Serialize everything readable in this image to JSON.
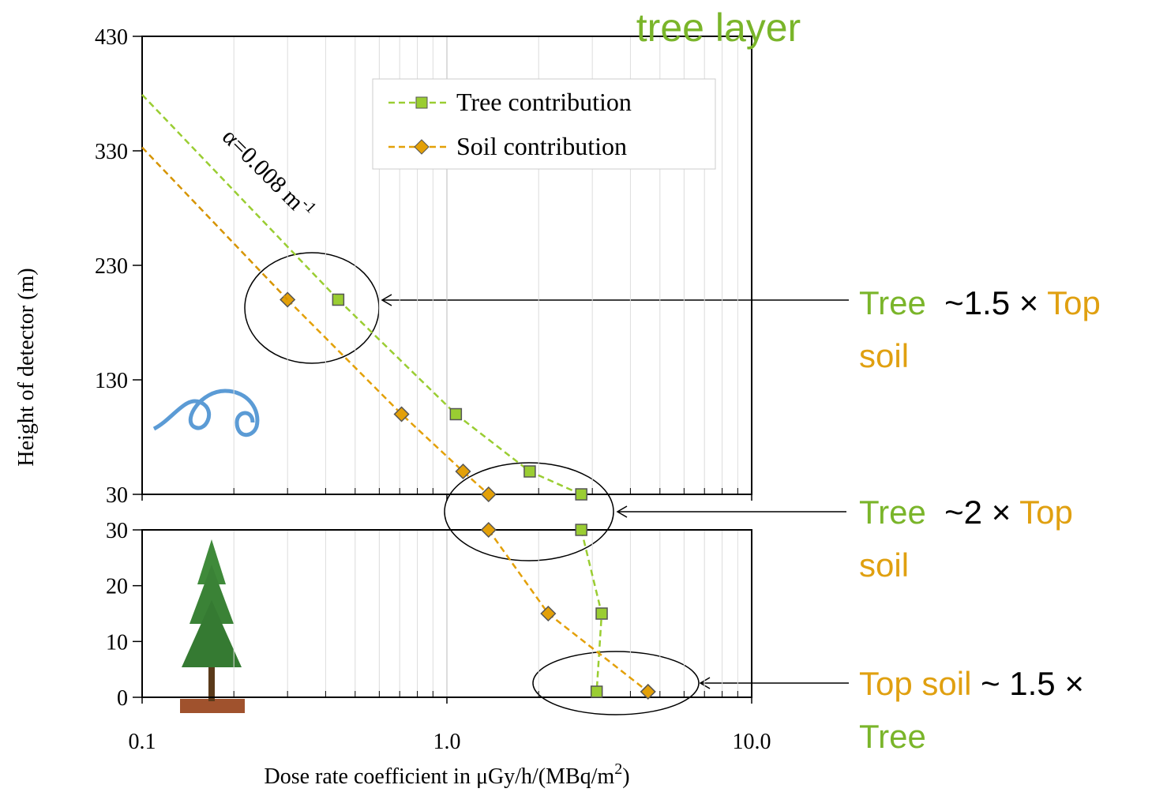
{
  "chart_data": [
    {
      "type": "line",
      "title": "tree layer",
      "title_color": "#7ab52a",
      "ylabel": "Height of detector (m)",
      "xscale": "log",
      "xlim": [
        0.1,
        10
      ],
      "ylim": [
        30,
        430
      ],
      "xticks": [
        0.1,
        {
          "value": 1,
          "label": "1.0"
        },
        {
          "value": 10,
          "label": "10.0"
        }
      ],
      "x_minor_ticks": [
        0.2,
        0.3,
        0.4,
        0.5,
        0.6,
        0.7,
        0.8,
        0.9,
        2,
        3,
        4,
        5,
        6,
        7,
        8,
        9
      ],
      "yticks": [
        30,
        130,
        230,
        330,
        430
      ],
      "grid": true,
      "legend": "upper right",
      "slope_label": {
        "text": "α=0.008 m",
        "sup": "-1"
      },
      "series": [
        {
          "name": "Tree contribution",
          "color": "#9acd32",
          "marker": "square",
          "x": [
            0.44,
            1.07,
            1.87,
            2.76
          ],
          "values": [
            200,
            100,
            50,
            30
          ]
        },
        {
          "name": "Soil contribution",
          "color": "#e3a008",
          "marker": "diamond",
          "x": [
            0.3,
            0.71,
            1.13,
            1.37
          ],
          "values": [
            200,
            100,
            50,
            30
          ]
        },
        {
          "color": "#9acd32",
          "marker": "none",
          "x": [
            0.1,
            0.44
          ],
          "values": [
            379,
            200
          ]
        },
        {
          "color": "#d69400",
          "marker": "none",
          "x": [
            0.1,
            0.3
          ],
          "values": [
            333,
            200
          ]
        }
      ]
    },
    {
      "type": "line",
      "xlabel": [
        "Dose rate coefficient in μGy/h/(MBq/m",
        "2",
        ")"
      ],
      "xscale": "log",
      "xlim": [
        0.1,
        10
      ],
      "ylim": [
        0,
        30
      ],
      "xticks": [
        0.1,
        {
          "value": 1,
          "label": "1.0"
        },
        {
          "value": 10,
          "label": "10.0"
        }
      ],
      "x_minor_ticks": [
        0.2,
        0.3,
        0.4,
        0.5,
        0.6,
        0.7,
        0.8,
        0.9,
        2,
        3,
        4,
        5,
        6,
        7,
        8,
        9
      ],
      "yticks": [
        0,
        10,
        20,
        30
      ],
      "grid": true,
      "series": [
        {
          "color": "#9acd32",
          "marker": "square",
          "x": [
            2.76,
            3.22,
            3.1
          ],
          "values": [
            30,
            15,
            1
          ]
        },
        {
          "color": "#e3a008",
          "marker": "diamond",
          "x": [
            1.37,
            2.15,
            4.57
          ],
          "values": [
            30,
            15,
            1
          ]
        }
      ]
    }
  ],
  "annotations": [
    {
      "lines": [
        [
          {
            "text": "Tree",
            "color": "#7ab52a"
          },
          {
            "text": "  ~1.5 × ",
            "color": "#000000"
          },
          {
            "text": "Top",
            "color": "#e0a010"
          }
        ],
        [
          {
            "text": "soil",
            "color": "#e0a010"
          }
        ]
      ]
    },
    {
      "lines": [
        [
          {
            "text": "Tree",
            "color": "#7ab52a"
          },
          {
            "text": "  ~2 × ",
            "color": "#000000"
          },
          {
            "text": "Top",
            "color": "#e0a010"
          }
        ],
        [
          {
            "text": "soil",
            "color": "#e0a010"
          }
        ]
      ]
    },
    {
      "lines": [
        [
          {
            "text": "Top soil",
            "color": "#e0a010"
          },
          {
            "text": " ~ 1.5 ×",
            "color": "#000000"
          }
        ],
        [
          {
            "text": "Tree",
            "color": "#7ab52a"
          }
        ]
      ]
    }
  ]
}
